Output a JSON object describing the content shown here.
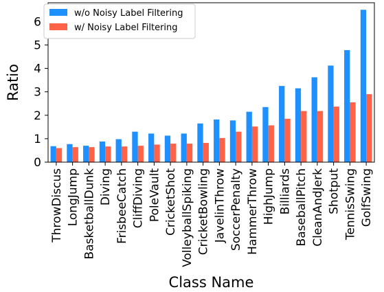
{
  "chart_data": {
    "type": "bar",
    "xlabel": "Class Name",
    "ylabel": "Ratio",
    "ylim": [
      0,
      6.8
    ],
    "yticks": [
      0,
      1,
      2,
      3,
      4,
      5,
      6
    ],
    "grid": false,
    "legend_position": "top-left",
    "categories": [
      "ThrowDiscus",
      "LongJump",
      "BasketballDunk",
      "Diving",
      "FrisbeeCatch",
      "CliffDiving",
      "PoleVault",
      "CricketShot",
      "VolleyballSpiking",
      "CricketBowling",
      "JavelinThrow",
      "SoccerPenalty",
      "HammerThrow",
      "HighJump",
      "Billiards",
      "BaseballPitch",
      "CleanAndJerk",
      "Shotput",
      "TennisSwing",
      "GolfSwing"
    ],
    "series": [
      {
        "name": "w/o Noisy Label Filtering",
        "color": "#1e90ff",
        "values": [
          0.68,
          0.77,
          0.7,
          0.88,
          0.98,
          1.3,
          1.22,
          1.13,
          1.22,
          1.65,
          1.82,
          1.78,
          2.15,
          2.35,
          3.25,
          3.15,
          3.62,
          4.12,
          4.78,
          6.5
        ]
      },
      {
        "name": "w/ Noisy Label Filtering",
        "color": "#ff6347",
        "values": [
          0.6,
          0.64,
          0.64,
          0.67,
          0.67,
          0.7,
          0.75,
          0.79,
          0.79,
          0.82,
          1.03,
          1.3,
          1.52,
          1.57,
          1.85,
          2.18,
          2.18,
          2.37,
          2.55,
          2.9
        ]
      }
    ]
  }
}
